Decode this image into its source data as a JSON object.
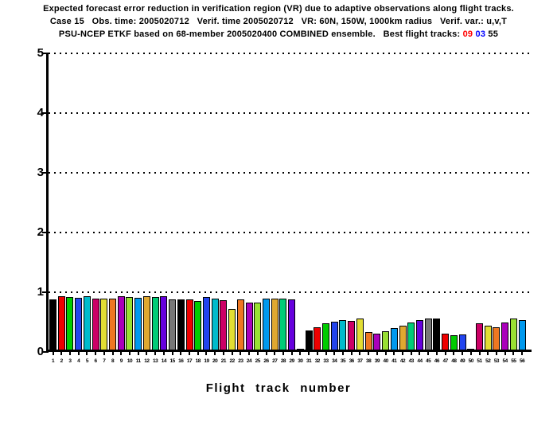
{
  "title": {
    "line1": "Expected forecast error reduction in verification region (VR) due to adaptive observations along flight tracks.",
    "line2": "Case 15   Obs. time: 2005020712   Verif. time 2005020712   VR: 60N, 150W, 1000km radius   Verif. var.: u,v,T",
    "line3_prefix": "PSU-NCEP ETKF based on 68-member 2005020400 COMBINED ensemble.   Best flight tracks: ",
    "best_tracks": [
      {
        "label": "09",
        "color": "#ff0000"
      },
      {
        "label": "03",
        "color": "#0000ff"
      },
      {
        "label": "55",
        "color": "#000000"
      }
    ]
  },
  "chart_data": {
    "type": "bar",
    "title": "Expected forecast error reduction in verification region (VR) due to adaptive observations along flight tracks.",
    "xlabel": "Flight track number",
    "ylabel": "",
    "ylim": [
      0,
      5
    ],
    "yticks": [
      0,
      1,
      2,
      3,
      4,
      5
    ],
    "grid": "horizontal dotted lines at each integer y value",
    "legend": "none",
    "bar_outline_color": "#000000",
    "palette_cycle": [
      "#000000",
      "#ee0000",
      "#00cc00",
      "#2244ee",
      "#00bbcc",
      "#cc0066",
      "#e2dd33",
      "#ee7722",
      "#aa00bb",
      "#99e033",
      "#0099ee",
      "#e0a830",
      "#00cc77",
      "#6600dd",
      "#777777"
    ],
    "categories": [
      1,
      2,
      3,
      4,
      5,
      6,
      7,
      8,
      9,
      10,
      11,
      12,
      13,
      14,
      15,
      16,
      17,
      18,
      19,
      20,
      21,
      22,
      23,
      24,
      25,
      26,
      27,
      28,
      29,
      30,
      31,
      32,
      33,
      34,
      35,
      36,
      37,
      38,
      39,
      40,
      41,
      42,
      43,
      44,
      45,
      46,
      47,
      48,
      49,
      50,
      51,
      52,
      53,
      54,
      55,
      56
    ],
    "values": [
      0.84,
      0.89,
      0.88,
      0.87,
      0.9,
      0.86,
      0.86,
      0.86,
      0.9,
      0.88,
      0.87,
      0.89,
      0.88,
      0.9,
      0.84,
      0.84,
      0.84,
      0.82,
      0.88,
      0.85,
      0.83,
      0.68,
      0.84,
      0.79,
      0.79,
      0.85,
      0.85,
      0.85,
      0.84,
      0.02,
      0.32,
      0.37,
      0.44,
      0.47,
      0.49,
      0.48,
      0.52,
      0.29,
      0.27,
      0.31,
      0.36,
      0.4,
      0.45,
      0.49,
      0.52,
      0.52,
      0.27,
      0.24,
      0.25,
      0.02,
      0.44,
      0.4,
      0.38,
      0.46,
      0.52,
      0.5
    ]
  }
}
